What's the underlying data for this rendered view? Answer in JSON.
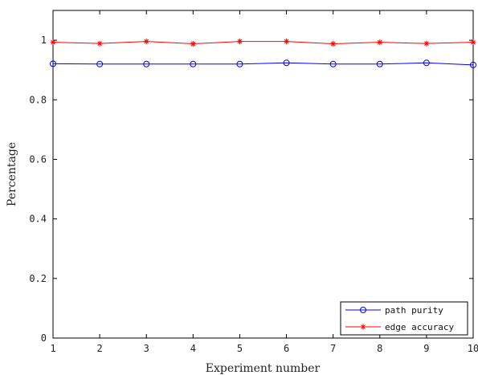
{
  "chart_data": {
    "type": "line",
    "title": "",
    "xlabel": "Experiment number",
    "ylabel": "Percentage",
    "xlim": [
      1,
      10
    ],
    "ylim": [
      0,
      1.1
    ],
    "grid": false,
    "legend_position": "bottom-right",
    "x": [
      1,
      2,
      3,
      4,
      5,
      6,
      7,
      8,
      9,
      10
    ],
    "x_ticks": [
      "1",
      "2",
      "3",
      "4",
      "5",
      "6",
      "7",
      "8",
      "9",
      "10"
    ],
    "y_ticks": [
      {
        "value": 0,
        "label": "0"
      },
      {
        "value": 0.2,
        "label": "0.2"
      },
      {
        "value": 0.4,
        "label": "0.4"
      },
      {
        "value": 0.6,
        "label": "0.6"
      },
      {
        "value": 0.8,
        "label": "0.8"
      },
      {
        "value": 1,
        "label": "1"
      }
    ],
    "series": [
      {
        "name": "path purity",
        "color": "#0000ff",
        "marker": "circle",
        "values": [
          0.921,
          0.92,
          0.92,
          0.92,
          0.92,
          0.924,
          0.92,
          0.92,
          0.924,
          0.917
        ]
      },
      {
        "name": "edge accuracy",
        "color": "#ff0000",
        "marker": "star",
        "values": [
          0.993,
          0.989,
          0.996,
          0.988,
          0.996,
          0.996,
          0.988,
          0.993,
          0.989,
          0.993
        ]
      }
    ]
  }
}
